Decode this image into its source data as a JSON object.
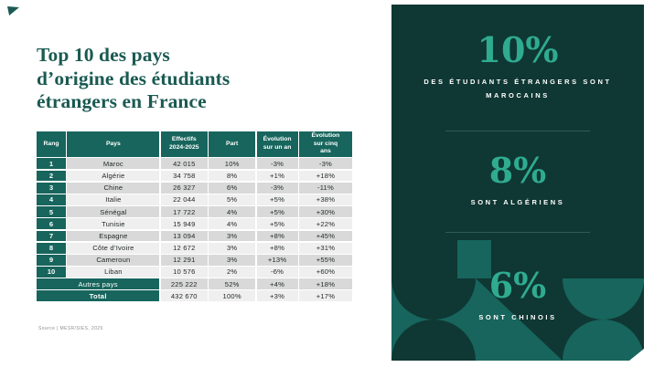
{
  "colors": {
    "panel": "#0f3733",
    "teal": "#17655d",
    "accent": "#2fab90",
    "title": "#1a5a52",
    "row-dark": "#d9d9d9",
    "row-light": "#efefef",
    "text": "#232a28"
  },
  "title": {
    "lines": [
      "Top 10 des pays",
      "d’origine des étudiants",
      "étrangers en France"
    ]
  },
  "table": {
    "headers": [
      "Rang",
      "Pays",
      "Effectifs\n2024-2025",
      "Part",
      "Évolution\nsur un an",
      "Évolution\nsur cinq\nans"
    ],
    "rows": [
      [
        "1",
        "Maroc",
        "42 015",
        "10%",
        "-3%",
        "-3%"
      ],
      [
        "2",
        "Algérie",
        "34 758",
        "8%",
        "+1%",
        "+18%"
      ],
      [
        "3",
        "Chine",
        "26 327",
        "6%",
        "-3%",
        "-11%"
      ],
      [
        "4",
        "Italie",
        "22 044",
        "5%",
        "+5%",
        "+38%"
      ],
      [
        "5",
        "Sénégal",
        "17 722",
        "4%",
        "+5%",
        "+30%"
      ],
      [
        "6",
        "Tunisie",
        "15 949",
        "4%",
        "+5%",
        "+22%"
      ],
      [
        "7",
        "Espagne",
        "13 094",
        "3%",
        "+8%",
        "+45%"
      ],
      [
        "8",
        "Côte d’Ivoire",
        "12 672",
        "3%",
        "+8%",
        "+31%"
      ],
      [
        "9",
        "Cameroun",
        "12 291",
        "3%",
        "+13%",
        "+55%"
      ],
      [
        "10",
        "Liban",
        "10 576",
        "2%",
        "-6%",
        "+60%"
      ]
    ],
    "summary": [
      [
        "Autres pays",
        "225 222",
        "52%",
        "+4%",
        "+18%"
      ],
      [
        "Total",
        "432 670",
        "100%",
        "+3%",
        "+17%"
      ]
    ]
  },
  "source": "Source | MESR/SIES, 2025",
  "panel": {
    "stats": [
      {
        "value": "10%",
        "label": "DES ÉTUDIANTS ÉTRANGERS SONT MAROCAINS"
      },
      {
        "value": "8%",
        "label": "SONT ALGÉRIENS"
      },
      {
        "value": "6%",
        "label": "SONT CHINOIS"
      }
    ]
  },
  "chart_data": {
    "type": "table",
    "title": "Top 10 des pays d’origine des étudiants étrangers en France",
    "columns": [
      "Rang",
      "Pays",
      "Effectifs 2024-2025",
      "Part",
      "Évolution sur un an",
      "Évolution sur cinq ans"
    ],
    "rows": [
      [
        1,
        "Maroc",
        42015,
        "10%",
        "-3%",
        "-3%"
      ],
      [
        2,
        "Algérie",
        34758,
        "8%",
        "+1%",
        "+18%"
      ],
      [
        3,
        "Chine",
        26327,
        "6%",
        "-3%",
        "-11%"
      ],
      [
        4,
        "Italie",
        22044,
        "5%",
        "+5%",
        "+38%"
      ],
      [
        5,
        "Sénégal",
        17722,
        "4%",
        "+5%",
        "+30%"
      ],
      [
        6,
        "Tunisie",
        15949,
        "4%",
        "+5%",
        "+22%"
      ],
      [
        7,
        "Espagne",
        13094,
        "3%",
        "+8%",
        "+45%"
      ],
      [
        8,
        "Côte d’Ivoire",
        12672,
        "3%",
        "+8%",
        "+31%"
      ],
      [
        9,
        "Cameroun",
        12291,
        "3%",
        "+13%",
        "+55%"
      ],
      [
        10,
        "Liban",
        10576,
        "2%",
        "-6%",
        "+60%"
      ],
      [
        "",
        "Autres pays",
        225222,
        "52%",
        "+4%",
        "+18%"
      ],
      [
        "",
        "Total",
        432670,
        "100%",
        "+3%",
        "+17%"
      ]
    ],
    "highlights": [
      {
        "value": "10%",
        "label": "des étudiants étrangers sont marocains"
      },
      {
        "value": "8%",
        "label": "sont algériens"
      },
      {
        "value": "6%",
        "label": "sont chinois"
      }
    ]
  }
}
